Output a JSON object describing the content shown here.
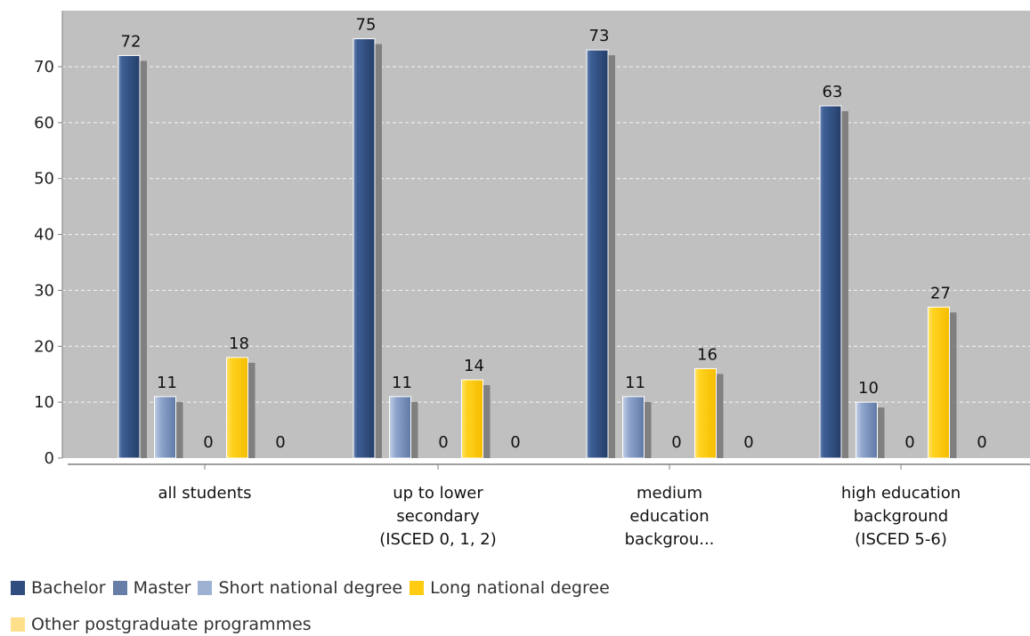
{
  "chart_data": {
    "type": "bar",
    "title": "",
    "xlabel": "",
    "ylabel": "",
    "ylim": [
      0,
      80
    ],
    "yticks": [
      0,
      10,
      20,
      30,
      40,
      50,
      60,
      70
    ],
    "grid": true,
    "legend_position": "bottom",
    "categories": [
      [
        "all students"
      ],
      [
        "up to lower",
        "secondary",
        "(ISCED 0, 1, 2)"
      ],
      [
        "medium",
        "education",
        "backgrou..."
      ],
      [
        "high education",
        "background",
        "(ISCED 5-6)"
      ]
    ],
    "series": [
      {
        "name": "Bachelor",
        "color": "#2f4d7e",
        "values": [
          72,
          75,
          73,
          63
        ]
      },
      {
        "name": "Master",
        "color": "#667ea8",
        "values": [
          11,
          11,
          11,
          10
        ]
      },
      {
        "name": "Short national degree",
        "color": "#9db1d3",
        "values": [
          0,
          0,
          0,
          0
        ]
      },
      {
        "name": "Long national degree",
        "color": "#ffcc11",
        "values": [
          18,
          14,
          16,
          27
        ]
      },
      {
        "name": "Other postgraduate programmes",
        "color": "#ffe08a",
        "values": [
          0,
          0,
          0,
          0
        ]
      }
    ],
    "plot_background": "#c0c0c0"
  }
}
